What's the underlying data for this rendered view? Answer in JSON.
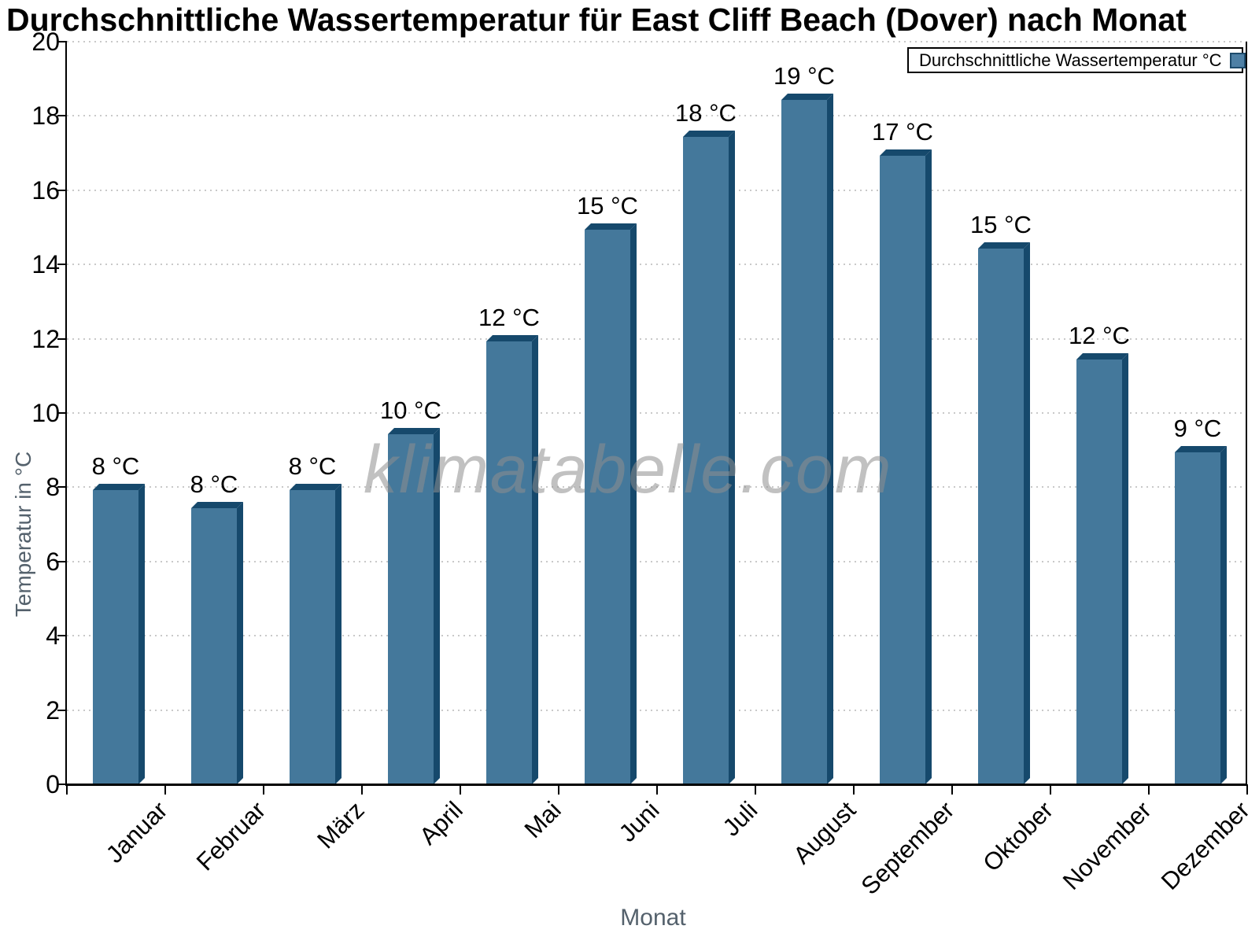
{
  "title": "Durchschnittliche Wassertemperatur für East Cliff Beach (Dover) nach Monat",
  "watermark": "klimatabelle.com",
  "legend": {
    "label": "Durchschnittliche Wassertemperatur °C",
    "position": "top-right"
  },
  "axes": {
    "x_title": "Monat",
    "y_title": "Temperatur in °C"
  },
  "chart_data": {
    "type": "bar",
    "title": "Durchschnittliche Wassertemperatur für East Cliff Beach (Dover) nach Monat",
    "series_name": "Durchschnittliche Wassertemperatur °C",
    "categories": [
      "Januar",
      "Februar",
      "März",
      "April",
      "Mai",
      "Juni",
      "Juli",
      "August",
      "September",
      "Oktober",
      "November",
      "Dezember"
    ],
    "values": [
      8.1,
      7.6,
      8.1,
      9.6,
      12.1,
      15.1,
      17.6,
      18.6,
      17.1,
      14.6,
      11.6,
      9.1
    ],
    "value_labels": [
      "8 °C",
      "8 °C",
      "8 °C",
      "10 °C",
      "12 °C",
      "15 °C",
      "18 °C",
      "19 °C",
      "17 °C",
      "15 °C",
      "12 °C",
      "9 °C"
    ],
    "xlabel": "Monat",
    "ylabel": "Temperatur in °C",
    "ylim": [
      0,
      20
    ],
    "yticks": [
      0,
      2,
      4,
      6,
      8,
      10,
      12,
      14,
      16,
      18,
      20
    ],
    "grid": "horizontal-dotted",
    "legend_position": "top-right",
    "bar_style": "3d-column"
  },
  "colors": {
    "bar_face": "#44789B",
    "bar_side": "#16496C",
    "legend_swatch": "#4e80a5",
    "swatch_border": "#1d4b6c",
    "axis_title_text": "#54616c",
    "tick_label_text": "#000000",
    "grid_line": "#c9c9c9",
    "axis_line": "#000000",
    "watermark_text": "#8f8f8f",
    "background": "#ffffff"
  }
}
